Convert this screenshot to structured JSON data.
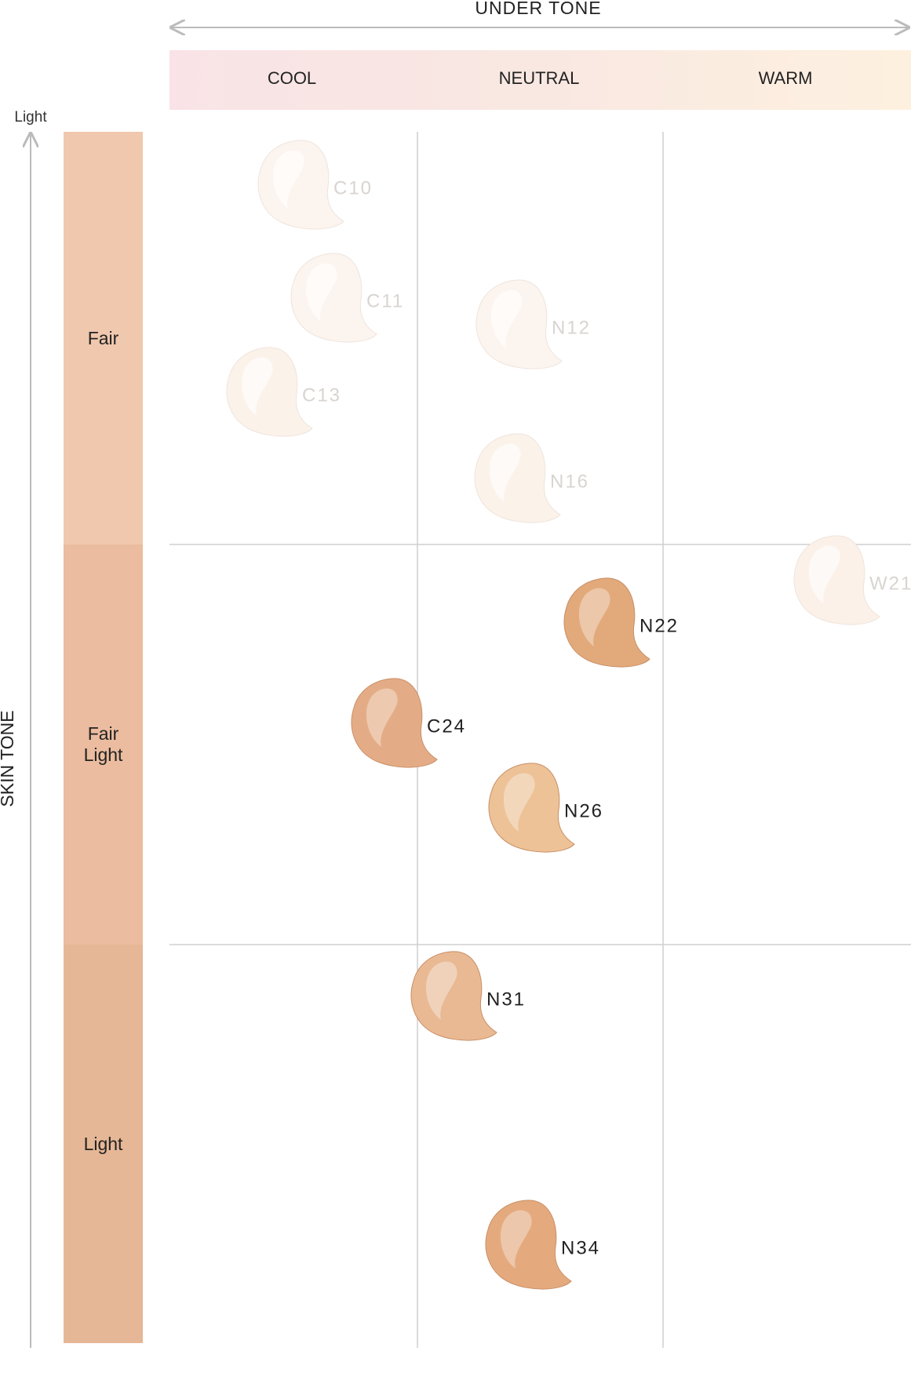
{
  "header": {
    "axis_x": "UNDER TONE",
    "columns": [
      "COOL",
      "NEUTRAL",
      "WARM"
    ]
  },
  "axis_y": {
    "top": "Light",
    "title": "SKIN TONE"
  },
  "rows": [
    "Fair",
    "Fair Light",
    "Light"
  ],
  "swatches": [
    {
      "label": "C10",
      "color": "#fcf4ef",
      "label_color": "#d8d4d0"
    },
    {
      "label": "C11",
      "color": "#fcf4ef",
      "label_color": "#d8d4d0"
    },
    {
      "label": "C13",
      "color": "#fbf2ea",
      "label_color": "#d8d4d0"
    },
    {
      "label": "N12",
      "color": "#fcf4ef",
      "label_color": "#d8d4d0"
    },
    {
      "label": "N16",
      "color": "#fbf2ea",
      "label_color": "#d8d4d0"
    },
    {
      "label": "W21",
      "color": "#fbf1e8",
      "label_color": "#d8d4d0"
    },
    {
      "label": "N22",
      "color": "#e2a97b",
      "label_color": "#222222"
    },
    {
      "label": "C24",
      "color": "#e4ac86",
      "label_color": "#222222"
    },
    {
      "label": "N26",
      "color": "#edc297",
      "label_color": "#222222"
    },
    {
      "label": "N31",
      "color": "#e9b994",
      "label_color": "#222222"
    },
    {
      "label": "N34",
      "color": "#e4aa7e",
      "label_color": "#222222"
    }
  ]
}
